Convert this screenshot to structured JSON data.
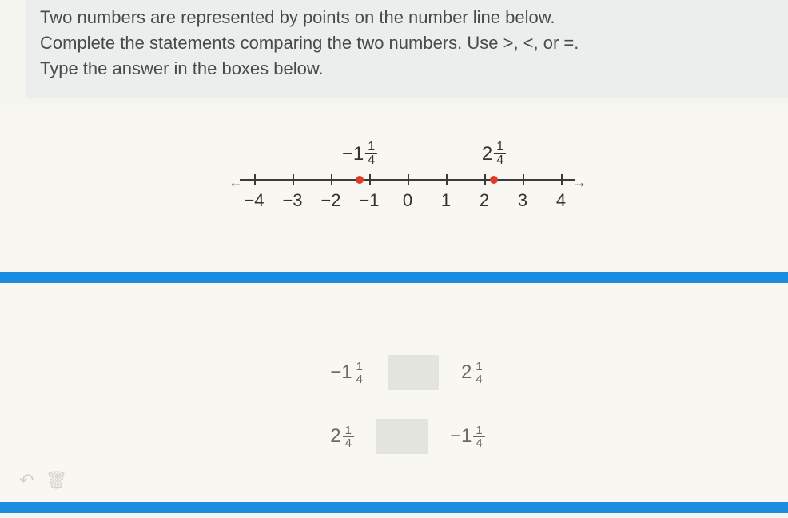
{
  "question": {
    "line1": "Two numbers are represented by points on the number line below.",
    "line2": "Complete the statements comparing the two numbers. Use >, <, or =.",
    "line3": "Type the answer in the boxes below."
  },
  "numberLine": {
    "min": -4,
    "max": 4,
    "ticks": [
      -4,
      -3,
      -2,
      -1,
      0,
      1,
      2,
      3,
      4
    ],
    "tickLabels": [
      "−4",
      "−3",
      "−2",
      "−1",
      "0",
      "1",
      "2",
      "3",
      "4"
    ],
    "axis_color": "#3a3a3a",
    "point_color": "#e03a2a",
    "arrow_left": "←",
    "arrow_right": "→",
    "points": [
      {
        "value": -1.25,
        "whole": "−1",
        "num": "1",
        "den": "4"
      },
      {
        "value": 2.25,
        "whole": "2",
        "num": "1",
        "den": "4"
      }
    ]
  },
  "comparisons": [
    {
      "left": {
        "whole": "−1",
        "num": "1",
        "den": "4"
      },
      "right": {
        "whole": "2",
        "num": "1",
        "den": "4"
      },
      "answer": ""
    },
    {
      "left": {
        "whole": "2",
        "num": "1",
        "den": "4"
      },
      "right": {
        "whole": "−1",
        "num": "1",
        "den": "4"
      },
      "answer": ""
    }
  ],
  "colors": {
    "blue_bar": "#1a8de0",
    "question_bg": "#eceeee",
    "page_bg": "#f8f7f2",
    "answer_box_bg": "#e4e4df",
    "text": "#4a4a4a",
    "muted_text": "#6a6a6a"
  },
  "icons": {
    "undo": "↶",
    "trash": "🗑"
  }
}
